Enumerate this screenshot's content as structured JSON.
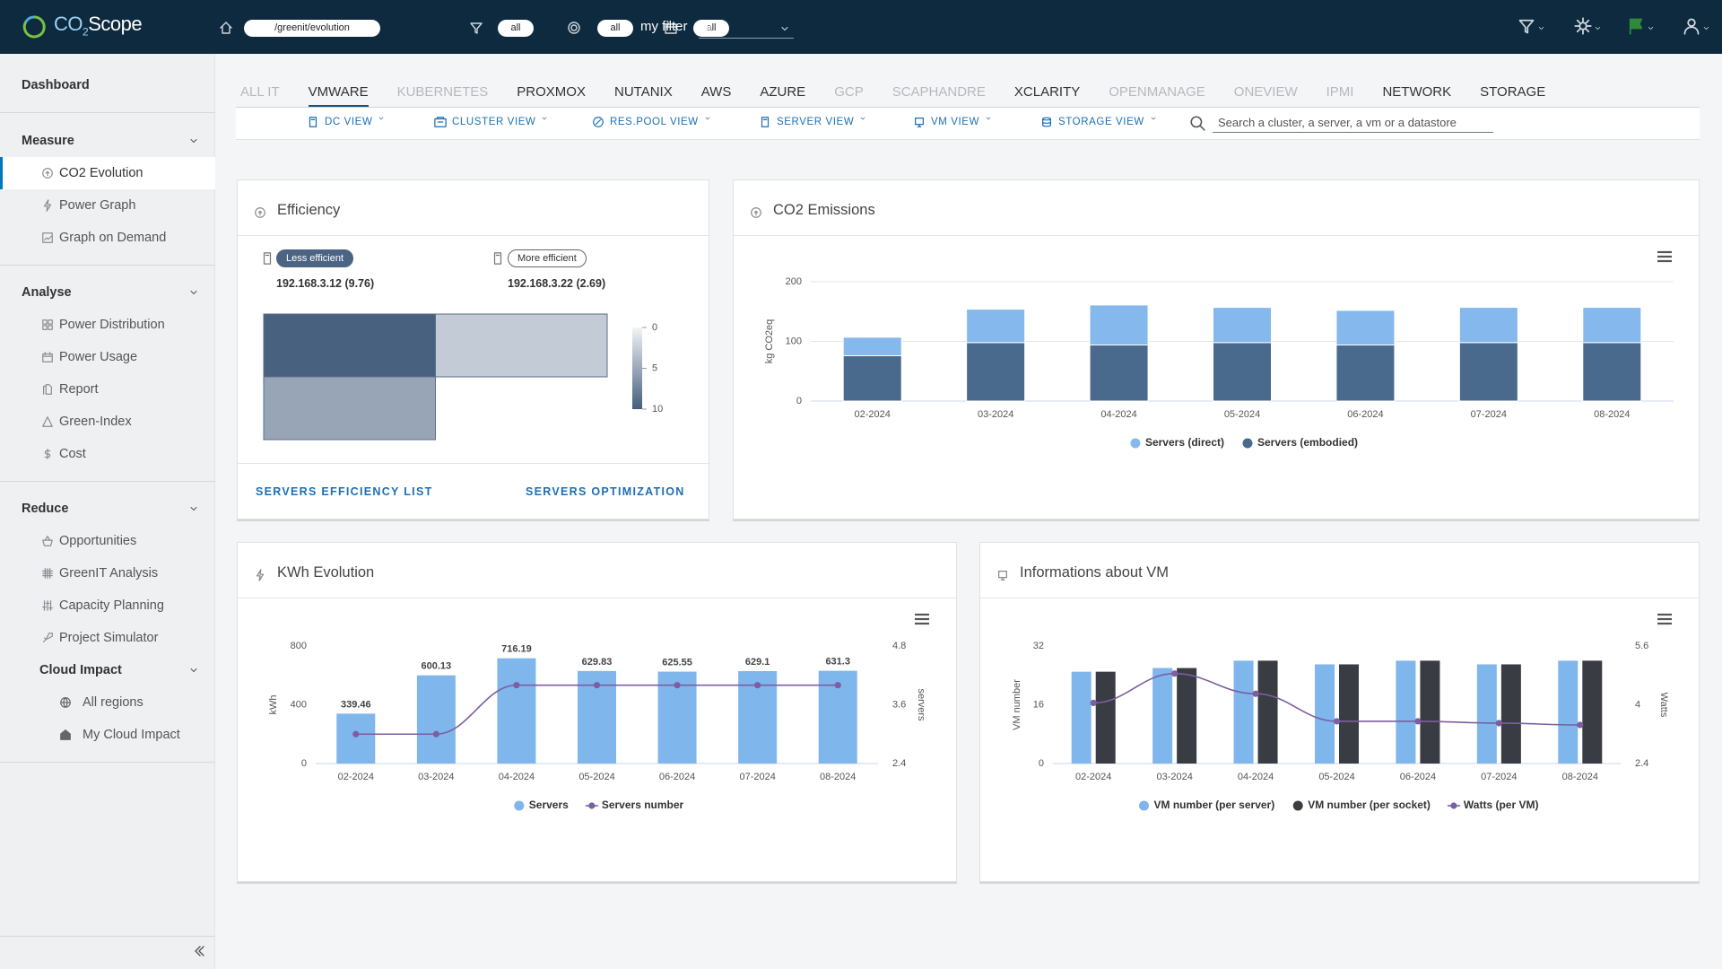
{
  "header": {
    "logo": {
      "main": "CO",
      "sub": "2",
      "tail": "Scope"
    },
    "path": "/greenit/evolution",
    "filters": [
      "all",
      "all",
      "all"
    ],
    "my_filter": {
      "label": "my filter",
      "value": "all"
    }
  },
  "sidebar": {
    "dashboard": "Dashboard",
    "sections": [
      {
        "title": "Measure",
        "items": [
          {
            "label": "CO2 Evolution",
            "active": true
          },
          {
            "label": "Power Graph"
          },
          {
            "label": "Graph on Demand"
          }
        ]
      },
      {
        "title": "Analyse",
        "items": [
          {
            "label": "Power Distribution"
          },
          {
            "label": "Power Usage"
          },
          {
            "label": "Report"
          },
          {
            "label": "Green-Index"
          },
          {
            "label": "Cost"
          }
        ]
      },
      {
        "title": "Reduce",
        "items": [
          {
            "label": "Opportunities"
          },
          {
            "label": "GreenIT Analysis"
          },
          {
            "label": "Capacity Planning"
          },
          {
            "label": "Project Simulator"
          }
        ]
      },
      {
        "title": "Cloud Impact",
        "nested": true,
        "items": [
          {
            "label": "All regions"
          },
          {
            "label": "My Cloud Impact"
          }
        ]
      }
    ]
  },
  "tabs": {
    "active": 1,
    "items": [
      {
        "label": "ALL IT",
        "enabled": false
      },
      {
        "label": "VMWARE",
        "enabled": true
      },
      {
        "label": "KUBERNETES",
        "enabled": false
      },
      {
        "label": "PROXMOX",
        "enabled": true
      },
      {
        "label": "NUTANIX",
        "enabled": true
      },
      {
        "label": "AWS",
        "enabled": true
      },
      {
        "label": "AZURE",
        "enabled": true
      },
      {
        "label": "GCP",
        "enabled": false
      },
      {
        "label": "SCAPHANDRE",
        "enabled": false
      },
      {
        "label": "XCLARITY",
        "enabled": true
      },
      {
        "label": "OPENMANAGE",
        "enabled": false
      },
      {
        "label": "ONEVIEW",
        "enabled": false
      },
      {
        "label": "IPMI",
        "enabled": false
      },
      {
        "label": "NETWORK",
        "enabled": true
      },
      {
        "label": "STORAGE",
        "enabled": true
      }
    ]
  },
  "views": {
    "items": [
      "DC VIEW",
      "CLUSTER VIEW",
      "RES.POOL VIEW",
      "SERVER VIEW",
      "VM VIEW",
      "STORAGE VIEW"
    ],
    "search_placeholder": "Search a cluster, a server, a vm or a datastore"
  },
  "chart_data": [
    {
      "type": "treemap",
      "title": "Efficiency",
      "least": {
        "label": "Less efficient",
        "value": "192.168.3.12 (9.76)"
      },
      "most": {
        "label": "More efficient",
        "value": "192.168.3.22 (2.69)"
      },
      "values": [
        9.76,
        2.69,
        5.2
      ],
      "colors": [
        "#f2f4f7",
        "#445d7c"
      ],
      "clim": [
        0,
        10
      ],
      "cticks": [
        0,
        5,
        10
      ],
      "links": [
        "SERVERS EFFICIENCY LIST",
        "SERVERS OPTIMIZATION"
      ]
    },
    {
      "type": "bar",
      "title": "CO2 Emissions",
      "stacked": true,
      "grid": true,
      "ylabel": "kg CO2eq",
      "categories": [
        "02-2024",
        "03-2024",
        "04-2024",
        "05-2024",
        "06-2024",
        "07-2024",
        "08-2024"
      ],
      "series": [
        {
          "name": "Servers (direct)",
          "color": "#85b8ec",
          "values": [
            31,
            56,
            67,
            59,
            58,
            59,
            59
          ]
        },
        {
          "name": "Servers (embodied)",
          "color": "#4a6a8d",
          "values": [
            76,
            98,
            94,
            98,
            94,
            98,
            98
          ]
        }
      ],
      "ylim": [
        0,
        200
      ],
      "yticks": [
        0,
        100,
        200
      ]
    },
    {
      "type": "combo",
      "title": "KWh Evolution",
      "ylabel": "kWh",
      "y2label": "servers",
      "categories": [
        "02-2024",
        "03-2024",
        "04-2024",
        "05-2024",
        "06-2024",
        "07-2024",
        "08-2024"
      ],
      "series": [
        {
          "name": "Servers",
          "type": "bar",
          "color": "#7fb6ec",
          "data_labels": true,
          "values": [
            339.46,
            600.13,
            716.19,
            629.83,
            625.55,
            629.1,
            631.3
          ]
        },
        {
          "name": "Servers number",
          "type": "line",
          "axis": "y2",
          "color": "#7b5fa2",
          "values": [
            3,
            3,
            4,
            4,
            4,
            4,
            4
          ]
        }
      ],
      "ylim": [
        0,
        800
      ],
      "yticks": [
        0,
        400,
        800
      ],
      "y2lim": [
        2.4,
        4.8
      ],
      "y2ticks": [
        2.4,
        3.6,
        4.8
      ]
    },
    {
      "type": "combo",
      "title": "Informations about VM",
      "ylabel": "VM number",
      "y2label": "Watts",
      "categories": [
        "02-2024",
        "03-2024",
        "04-2024",
        "05-2024",
        "06-2024",
        "07-2024",
        "08-2024"
      ],
      "series": [
        {
          "name": "VM number (per server)",
          "type": "bar",
          "color": "#7fb6ec",
          "values": [
            25,
            26,
            28,
            27,
            28,
            27,
            28
          ]
        },
        {
          "name": "VM number (per socket)",
          "type": "bar",
          "color": "#3a3c43",
          "values": [
            25,
            26,
            28,
            27,
            28,
            27,
            28
          ]
        },
        {
          "name": "Watts (per VM)",
          "type": "line",
          "axis": "y2",
          "color": "#7b5fa2",
          "values": [
            4.05,
            4.85,
            4.3,
            3.55,
            3.55,
            3.5,
            3.45
          ]
        }
      ],
      "ylim": [
        0,
        32
      ],
      "yticks": [
        0,
        16,
        32
      ],
      "y2lim": [
        2.4,
        5.6
      ],
      "y2ticks": [
        2.4,
        4,
        5.6
      ]
    }
  ]
}
